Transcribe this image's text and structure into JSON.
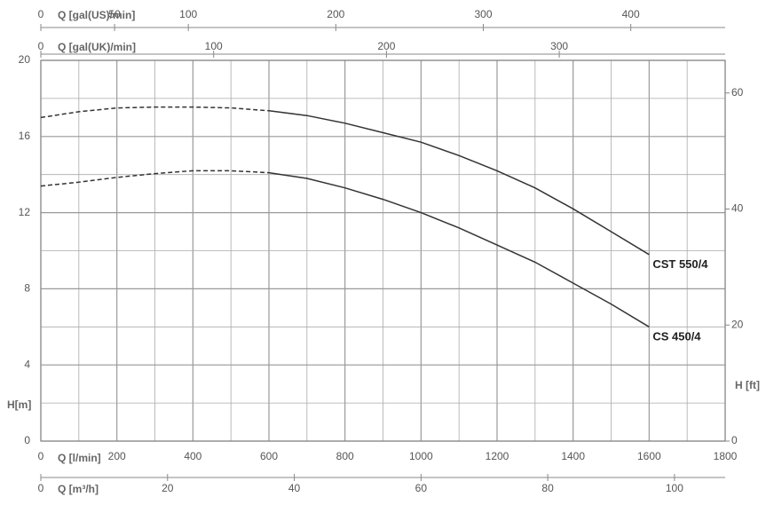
{
  "chart_data": {
    "type": "line",
    "xlabel": "Q [l/min]",
    "ylabel": "H[m]",
    "y2label": "H [ft]",
    "x": [
      0,
      100,
      200,
      300,
      400,
      500,
      600,
      700,
      800,
      900,
      1000,
      1100,
      1200,
      1300,
      1400,
      1500,
      1600
    ],
    "xlim": [
      0,
      1800
    ],
    "xticks": [
      0,
      200,
      400,
      600,
      800,
      1000,
      1200,
      1400,
      1600,
      1800
    ],
    "ylim": [
      0,
      20
    ],
    "yticks": [
      0,
      4,
      8,
      12,
      16,
      20
    ],
    "y2lim": [
      0,
      65.62
    ],
    "y2ticks": [
      0,
      20,
      40,
      60
    ],
    "grid": true,
    "dashed_below_x": 600,
    "series": [
      {
        "name": "CST 550/4",
        "color": "#333333",
        "values": [
          17.0,
          17.3,
          17.5,
          17.55,
          17.55,
          17.5,
          17.35,
          17.1,
          16.7,
          16.2,
          15.7,
          15.0,
          14.2,
          13.3,
          12.2,
          11.0,
          9.8
        ]
      },
      {
        "name": "CS 450/4",
        "color": "#333333",
        "values": [
          13.4,
          13.6,
          13.85,
          14.05,
          14.2,
          14.2,
          14.1,
          13.8,
          13.3,
          12.7,
          12.0,
          11.2,
          10.3,
          9.4,
          8.3,
          7.2,
          6.0
        ]
      }
    ],
    "secondary_x_axes": [
      {
        "label": "Q [gal(US)/min]",
        "position": "top",
        "xlim": [
          0,
          464
        ],
        "xticks": [
          0,
          50,
          100,
          200,
          300,
          400
        ]
      },
      {
        "label": "Q [gal(UK)/min]",
        "position": "top",
        "xlim": [
          0,
          396
        ],
        "xticks": [
          0,
          100,
          200,
          300
        ]
      },
      {
        "label": "Q [m³/h]",
        "position": "bottom",
        "xlim": [
          0,
          108
        ],
        "xticks": [
          0,
          20,
          40,
          60,
          80,
          100
        ]
      }
    ]
  }
}
